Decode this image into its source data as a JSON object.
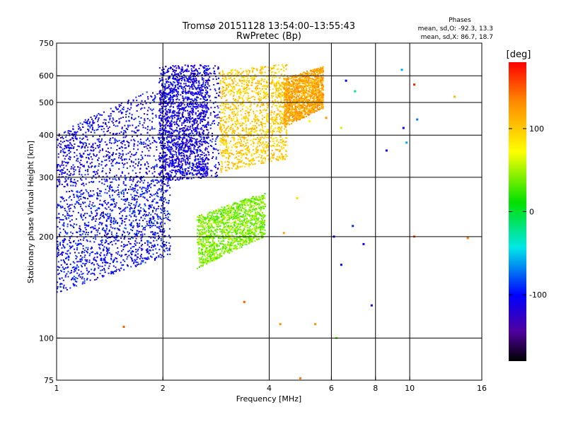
{
  "chart_data": {
    "type": "scatter",
    "title": "Tromsø 20151128 13:54:00–13:55:43",
    "subtitle": "RwPretec (Bp)",
    "xlabel": "Frequency [MHz]",
    "ylabel": "Stationary phase Virtual Height [km]",
    "x_scale": "log",
    "y_scale": "log",
    "xlim": [
      1,
      16
    ],
    "ylim": [
      75,
      750
    ],
    "x_ticks": [
      1,
      2,
      4,
      6,
      8,
      10,
      16
    ],
    "y_ticks": [
      75,
      100,
      200,
      300,
      400,
      500,
      600,
      750
    ],
    "x_gridlines": [
      2,
      4,
      6,
      8,
      10
    ],
    "y_gridlines": [
      100,
      200,
      300,
      400,
      500,
      600
    ],
    "grid": true,
    "colorbar": {
      "label": "[deg]",
      "ticks": [
        100,
        0,
        -100
      ],
      "range": [
        -180,
        180
      ],
      "colormap": "rainbow"
    },
    "stats": {
      "heading": "Phases",
      "line_o": "mean, sd,O: -92.3, 13.3",
      "line_x": "mean, sd,X: 86.7, 18.7"
    },
    "traces": [
      {
        "id": "o-lower-band",
        "x_range": [
          1.0,
          2.1
        ],
        "height_low": [
          135,
          175
        ],
        "height_high": [
          270,
          300
        ],
        "phase": -100
      },
      {
        "id": "o-upper-band",
        "x_range": [
          1.0,
          2.9
        ],
        "height_low": [
          280,
          300
        ],
        "height_high": [
          400,
          650
        ],
        "phase": -105
      },
      {
        "id": "o-vertical-stripes",
        "x_range": [
          1.95,
          2.7
        ],
        "height_low": [
          290,
          300
        ],
        "height_high": [
          640,
          650
        ],
        "phase": -110
      },
      {
        "id": "x-upper-cluster",
        "x_range": [
          2.9,
          4.5
        ],
        "height_low": [
          310,
          340
        ],
        "height_high": [
          620,
          650
        ],
        "phase": 100
      },
      {
        "id": "x-lower-cluster",
        "x_range": [
          2.5,
          3.9
        ],
        "height_low": [
          160,
          200
        ],
        "height_high": [
          230,
          270
        ],
        "phase": 40
      },
      {
        "id": "x-mid-stripes",
        "x_range": [
          4.4,
          5.7
        ],
        "height_low": [
          420,
          480
        ],
        "height_high": [
          590,
          640
        ],
        "phase": 120
      }
    ],
    "sparse_points": [
      {
        "x": 5.4,
        "y": 110,
        "phase": 130
      },
      {
        "x": 4.3,
        "y": 110,
        "phase": 130
      },
      {
        "x": 4.9,
        "y": 76,
        "phase": 140
      },
      {
        "x": 3.4,
        "y": 128,
        "phase": 150
      },
      {
        "x": 1.55,
        "y": 108,
        "phase": 150
      },
      {
        "x": 6.2,
        "y": 100,
        "phase": 40
      },
      {
        "x": 6.1,
        "y": 200,
        "phase": -110
      },
      {
        "x": 6.4,
        "y": 165,
        "phase": -100
      },
      {
        "x": 6.9,
        "y": 215,
        "phase": -90
      },
      {
        "x": 7.4,
        "y": 190,
        "phase": -110
      },
      {
        "x": 8.6,
        "y": 360,
        "phase": -110
      },
      {
        "x": 9.6,
        "y": 420,
        "phase": -100
      },
      {
        "x": 10.3,
        "y": 565,
        "phase": 170
      },
      {
        "x": 10.3,
        "y": 200,
        "phase": 150
      },
      {
        "x": 13.4,
        "y": 520,
        "phase": 110
      },
      {
        "x": 14.6,
        "y": 198,
        "phase": 140
      },
      {
        "x": 7.8,
        "y": 125,
        "phase": -110
      },
      {
        "x": 9.5,
        "y": 625,
        "phase": -60
      },
      {
        "x": 10.5,
        "y": 445,
        "phase": -70
      },
      {
        "x": 5.8,
        "y": 450,
        "phase": 130
      },
      {
        "x": 6.6,
        "y": 580,
        "phase": -100
      },
      {
        "x": 7.0,
        "y": 540,
        "phase": -20
      },
      {
        "x": 6.4,
        "y": 420,
        "phase": 60
      },
      {
        "x": 5.2,
        "y": 440,
        "phase": 70
      },
      {
        "x": 4.4,
        "y": 205,
        "phase": 120
      },
      {
        "x": 4.8,
        "y": 260,
        "phase": 90
      },
      {
        "x": 9.8,
        "y": 380,
        "phase": -60
      }
    ]
  }
}
